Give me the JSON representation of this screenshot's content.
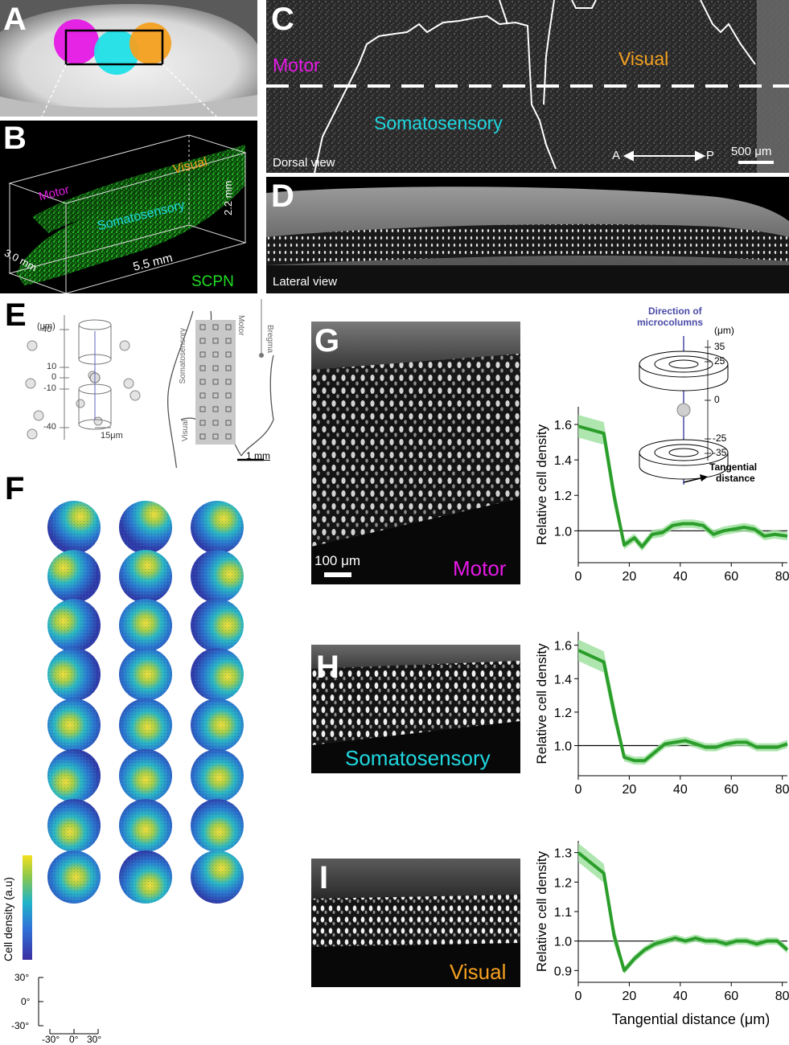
{
  "panels": {
    "A": {
      "label": "A"
    },
    "B": {
      "label": "B",
      "motor": "Motor",
      "visual": "Visual",
      "somato": "Somatosensory",
      "dim_h": "2.2 mm",
      "dim_d": "3.0 mm",
      "dim_w": "5.5 mm",
      "scpn": "SCPN"
    },
    "C": {
      "label": "C",
      "motor": "Motor",
      "visual": "Visual",
      "somato": "Somatosensory",
      "view": "Dorsal view",
      "a": "A",
      "p": "P",
      "scale": "500 μm"
    },
    "D": {
      "label": "D",
      "view": "Lateral view"
    },
    "E": {
      "label": "E",
      "unit": "(μm)",
      "ticks": [
        "40",
        "10",
        "0",
        "-10",
        "-40"
      ],
      "radius": "15μm",
      "motor": "Motor",
      "somato": "Somatosensory",
      "visual": "Visual",
      "bregma": "Bregma",
      "scale": "1 mm"
    },
    "F": {
      "label": "F",
      "colorbar": "Cell density (a.u)",
      "yticks": [
        "30°",
        "0°",
        "-30°"
      ],
      "xticks": [
        "-30°",
        "0°",
        "30°"
      ]
    },
    "G": {
      "label": "G",
      "scale": "100 μm",
      "region": "Motor"
    },
    "H": {
      "label": "H",
      "region": "Somatosensory"
    },
    "I": {
      "label": "I",
      "region": "Visual"
    },
    "inset": {
      "title_line1": "Direction of",
      "title_line2": "microcolumns",
      "unit": "(μm)",
      "ticks": [
        "35",
        "25",
        "0",
        "-25",
        "-35"
      ],
      "arrow_label_line1": "Tangential",
      "arrow_label_line2": "distance"
    }
  },
  "colors": {
    "motor": "#e619e6",
    "somato": "#20d8e0",
    "visual": "#f5a020",
    "scpn": "#22dd22",
    "line": "#2a9d2a",
    "band": "#9be09b"
  },
  "chart_data": [
    {
      "type": "line",
      "name": "Motor",
      "ylabel": "Relative cell density",
      "xlabel": "",
      "xlim": [
        0,
        82
      ],
      "ylim": [
        0.82,
        1.7
      ],
      "xticks": [
        "0",
        "20",
        "40",
        "60",
        "80"
      ],
      "yticks": [
        "1.0",
        "1.2",
        "1.4",
        "1.6"
      ],
      "ytick_values": [
        1.0,
        1.2,
        1.4,
        1.6
      ],
      "x": [
        0,
        10,
        14,
        18,
        22,
        25,
        29,
        33,
        37,
        41,
        45,
        49,
        53,
        57,
        61,
        65,
        69,
        73,
        77,
        82
      ],
      "y": [
        1.59,
        1.55,
        1.2,
        0.92,
        0.96,
        0.91,
        0.98,
        0.99,
        1.03,
        1.04,
        1.04,
        1.03,
        0.98,
        1.0,
        1.01,
        1.02,
        1.01,
        0.97,
        0.98,
        0.97
      ],
      "band": 0.04,
      "reference": 1.0
    },
    {
      "type": "line",
      "name": "Somatosensory",
      "ylabel": "Relative cell density",
      "xlabel": "",
      "xlim": [
        0,
        82
      ],
      "ylim": [
        0.82,
        1.68
      ],
      "xticks": [
        "0",
        "20",
        "40",
        "60",
        "80"
      ],
      "yticks": [
        "1.0",
        "1.2",
        "1.4",
        "1.6"
      ],
      "ytick_values": [
        1.0,
        1.2,
        1.4,
        1.6
      ],
      "x": [
        0,
        10,
        14,
        18,
        22,
        26,
        30,
        34,
        38,
        42,
        46,
        50,
        54,
        58,
        62,
        66,
        70,
        74,
        78,
        82
      ],
      "y": [
        1.57,
        1.5,
        1.2,
        0.93,
        0.91,
        0.91,
        0.96,
        1.01,
        1.02,
        1.03,
        1.01,
        0.99,
        0.99,
        1.01,
        1.02,
        1.02,
        0.99,
        0.99,
        0.99,
        1.01
      ],
      "band": 0.04,
      "reference": 1.0
    },
    {
      "type": "line",
      "name": "Visual",
      "ylabel": "Relative cell density",
      "xlabel": "Tangential distance (μm)",
      "xlim": [
        0,
        82
      ],
      "ylim": [
        0.86,
        1.34
      ],
      "xticks": [
        "0",
        "20",
        "40",
        "60",
        "80"
      ],
      "yticks": [
        "0.9",
        "1.0",
        "1.1",
        "1.2",
        "1.3"
      ],
      "ytick_values": [
        0.9,
        1.0,
        1.1,
        1.2,
        1.3
      ],
      "x": [
        0,
        10,
        14,
        18,
        22,
        26,
        30,
        34,
        38,
        42,
        46,
        50,
        54,
        58,
        62,
        66,
        70,
        74,
        78,
        82
      ],
      "y": [
        1.3,
        1.23,
        1.02,
        0.9,
        0.94,
        0.97,
        0.99,
        1.0,
        1.01,
        1.0,
        1.01,
        1.0,
        1.0,
        0.99,
        1.0,
        1.0,
        0.99,
        1.0,
        1.0,
        0.97
      ],
      "band": 0.02,
      "reference": 1.0
    }
  ]
}
